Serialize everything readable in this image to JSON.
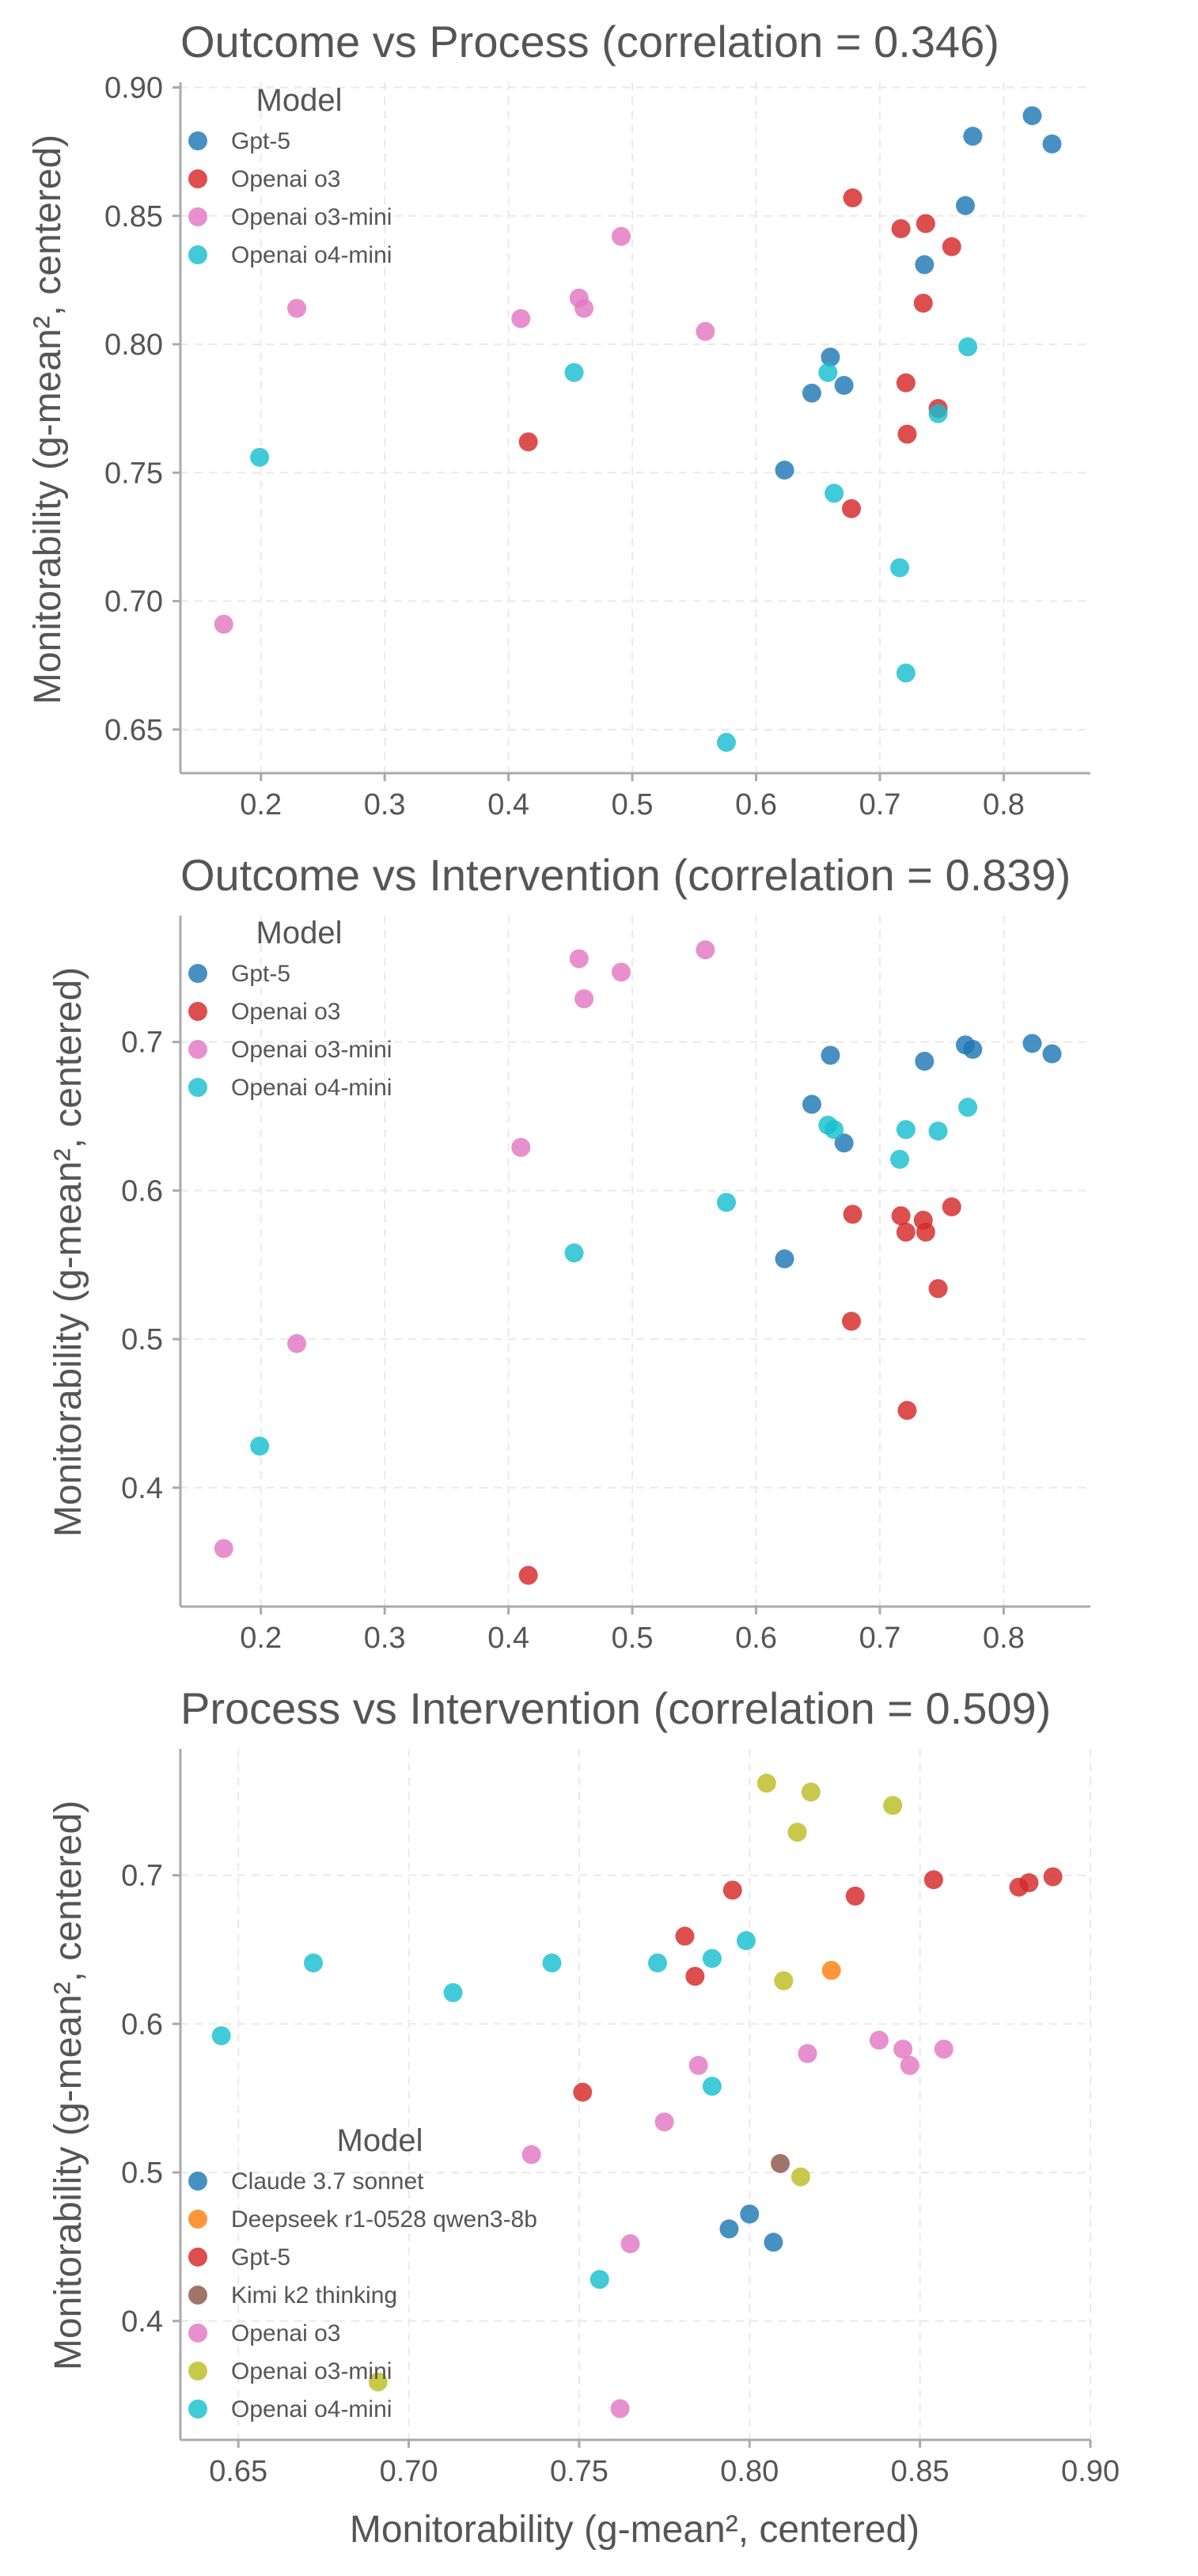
{
  "colors": {
    "claude": "#1f77b4",
    "deepseek": "#ff7f0e",
    "gpt5_panel3": "#d62728",
    "kimi": "#8c564b",
    "o3_panel3": "#e377c2",
    "o3mini_panel3": "#bcbd22",
    "o4mini": "#17becf",
    "gpt5": "#1f77b4",
    "o3": "#d62728",
    "o3mini": "#e377c2"
  },
  "chart_data": [
    {
      "type": "scatter",
      "title": "Outcome vs Process (correlation = 0.346)",
      "ylabel": "Monitorability (g-mean², centered)",
      "xlabel": "",
      "xlim": [
        0.135,
        0.87
      ],
      "ylim": [
        0.633,
        0.902
      ],
      "xticks": [
        0.2,
        0.3,
        0.4,
        0.5,
        0.6,
        0.7,
        0.8
      ],
      "xtick_labels": [
        "0.2",
        "0.3",
        "0.4",
        "0.5",
        "0.6",
        "0.7",
        "0.8"
      ],
      "yticks": [
        0.65,
        0.7,
        0.75,
        0.8,
        0.85,
        0.9
      ],
      "ytick_labels": [
        "0.65",
        "0.70",
        "0.75",
        "0.80",
        "0.85",
        "0.90"
      ],
      "grid": true,
      "legend": {
        "title": "Model",
        "position": "top-left"
      },
      "series": [
        {
          "name": "Gpt-5",
          "color": "#1f77b4",
          "points": [
            [
              0.623,
              0.751
            ],
            [
              0.645,
              0.781
            ],
            [
              0.66,
              0.795
            ],
            [
              0.671,
              0.784
            ],
            [
              0.736,
              0.831
            ],
            [
              0.769,
              0.854
            ],
            [
              0.775,
              0.881
            ],
            [
              0.823,
              0.889
            ],
            [
              0.839,
              0.878
            ]
          ]
        },
        {
          "name": "Openai o3",
          "color": "#d62728",
          "points": [
            [
              0.416,
              0.762
            ],
            [
              0.677,
              0.736
            ],
            [
              0.678,
              0.857
            ],
            [
              0.717,
              0.845
            ],
            [
              0.721,
              0.785
            ],
            [
              0.722,
              0.765
            ],
            [
              0.735,
              0.816
            ],
            [
              0.737,
              0.847
            ],
            [
              0.747,
              0.775
            ],
            [
              0.758,
              0.838
            ]
          ]
        },
        {
          "name": "Openai o3-mini",
          "color": "#e377c2",
          "points": [
            [
              0.17,
              0.691
            ],
            [
              0.229,
              0.814
            ],
            [
              0.41,
              0.81
            ],
            [
              0.457,
              0.818
            ],
            [
              0.461,
              0.814
            ],
            [
              0.491,
              0.842
            ],
            [
              0.559,
              0.805
            ]
          ]
        },
        {
          "name": "Openai o4-mini",
          "color": "#17becf",
          "points": [
            [
              0.199,
              0.756
            ],
            [
              0.453,
              0.789
            ],
            [
              0.576,
              0.645
            ],
            [
              0.658,
              0.789
            ],
            [
              0.663,
              0.742
            ],
            [
              0.716,
              0.713
            ],
            [
              0.721,
              0.672
            ],
            [
              0.747,
              0.773
            ],
            [
              0.771,
              0.799
            ]
          ]
        }
      ]
    },
    {
      "type": "scatter",
      "title": "Outcome vs Intervention (correlation = 0.839)",
      "ylabel": "Monitorability (g-mean², centered)",
      "xlabel": "",
      "xlim": [
        0.135,
        0.87
      ],
      "ylim": [
        0.32,
        0.785
      ],
      "xticks": [
        0.2,
        0.3,
        0.4,
        0.5,
        0.6,
        0.7,
        0.8
      ],
      "xtick_labels": [
        "0.2",
        "0.3",
        "0.4",
        "0.5",
        "0.6",
        "0.7",
        "0.8"
      ],
      "yticks": [
        0.4,
        0.5,
        0.6,
        0.7
      ],
      "ytick_labels": [
        "0.4",
        "0.5",
        "0.6",
        "0.7"
      ],
      "grid": true,
      "legend": {
        "title": "Model",
        "position": "top-left"
      },
      "series": [
        {
          "name": "Gpt-5",
          "color": "#1f77b4",
          "points": [
            [
              0.623,
              0.554
            ],
            [
              0.645,
              0.658
            ],
            [
              0.66,
              0.691
            ],
            [
              0.671,
              0.632
            ],
            [
              0.736,
              0.687
            ],
            [
              0.769,
              0.698
            ],
            [
              0.775,
              0.695
            ],
            [
              0.823,
              0.699
            ],
            [
              0.839,
              0.692
            ]
          ]
        },
        {
          "name": "Openai o3",
          "color": "#d62728",
          "points": [
            [
              0.416,
              0.341
            ],
            [
              0.677,
              0.512
            ],
            [
              0.678,
              0.584
            ],
            [
              0.717,
              0.583
            ],
            [
              0.721,
              0.572
            ],
            [
              0.722,
              0.452
            ],
            [
              0.735,
              0.58
            ],
            [
              0.737,
              0.572
            ],
            [
              0.747,
              0.534
            ],
            [
              0.758,
              0.589
            ]
          ]
        },
        {
          "name": "Openai o3-mini",
          "color": "#e377c2",
          "points": [
            [
              0.17,
              0.359
            ],
            [
              0.229,
              0.497
            ],
            [
              0.41,
              0.629
            ],
            [
              0.457,
              0.756
            ],
            [
              0.461,
              0.729
            ],
            [
              0.491,
              0.747
            ],
            [
              0.559,
              0.762
            ]
          ]
        },
        {
          "name": "Openai o4-mini",
          "color": "#17becf",
          "points": [
            [
              0.199,
              0.428
            ],
            [
              0.453,
              0.558
            ],
            [
              0.576,
              0.592
            ],
            [
              0.658,
              0.644
            ],
            [
              0.663,
              0.641
            ],
            [
              0.716,
              0.621
            ],
            [
              0.721,
              0.641
            ],
            [
              0.747,
              0.64
            ],
            [
              0.771,
              0.656
            ]
          ]
        }
      ]
    },
    {
      "type": "scatter",
      "title": "Process vs Intervention (correlation = 0.509)",
      "ylabel": "Monitorability (g-mean², centered)",
      "xlabel": "Monitorability (g-mean², centered)",
      "xlim": [
        0.633,
        0.9
      ],
      "ylim": [
        0.32,
        0.785
      ],
      "xticks": [
        0.65,
        0.7,
        0.75,
        0.8,
        0.85,
        0.9
      ],
      "xtick_labels": [
        "0.65",
        "0.70",
        "0.75",
        "0.80",
        "0.85",
        "0.90"
      ],
      "yticks": [
        0.4,
        0.5,
        0.6,
        0.7
      ],
      "ytick_labels": [
        "0.4",
        "0.5",
        "0.6",
        "0.7"
      ],
      "grid": true,
      "legend": {
        "title": "Model",
        "position": "bottom-left"
      },
      "series": [
        {
          "name": "Claude 3.7 sonnet",
          "color": "#1f77b4",
          "points": [
            [
              0.794,
              0.462
            ],
            [
              0.8,
              0.472
            ],
            [
              0.807,
              0.453
            ]
          ]
        },
        {
          "name": "Deepseek r1-0528 qwen3-8b",
          "color": "#ff7f0e",
          "points": [
            [
              0.824,
              0.636
            ]
          ]
        },
        {
          "name": "Gpt-5",
          "color": "#d62728",
          "points": [
            [
              0.751,
              0.554
            ],
            [
              0.781,
              0.659
            ],
            [
              0.784,
              0.632
            ],
            [
              0.795,
              0.69
            ],
            [
              0.831,
              0.686
            ],
            [
              0.854,
              0.697
            ],
            [
              0.879,
              0.692
            ],
            [
              0.882,
              0.695
            ],
            [
              0.889,
              0.699
            ]
          ]
        },
        {
          "name": "Kimi k2 thinking",
          "color": "#8c564b",
          "points": [
            [
              0.809,
              0.506
            ]
          ]
        },
        {
          "name": "Openai o3",
          "color": "#e377c2",
          "points": [
            [
              0.736,
              0.512
            ],
            [
              0.762,
              0.341
            ],
            [
              0.765,
              0.452
            ],
            [
              0.775,
              0.534
            ],
            [
              0.785,
              0.572
            ],
            [
              0.817,
              0.58
            ],
            [
              0.838,
              0.589
            ],
            [
              0.845,
              0.583
            ],
            [
              0.847,
              0.572
            ],
            [
              0.857,
              0.583
            ]
          ]
        },
        {
          "name": "Openai o3-mini",
          "color": "#bcbd22",
          "points": [
            [
              0.691,
              0.359
            ],
            [
              0.805,
              0.762
            ],
            [
              0.81,
              0.629
            ],
            [
              0.814,
              0.729
            ],
            [
              0.815,
              0.497
            ],
            [
              0.818,
              0.756
            ],
            [
              0.842,
              0.747
            ]
          ]
        },
        {
          "name": "Openai o4-mini",
          "color": "#17becf",
          "points": [
            [
              0.645,
              0.592
            ],
            [
              0.672,
              0.641
            ],
            [
              0.713,
              0.621
            ],
            [
              0.742,
              0.641
            ],
            [
              0.756,
              0.428
            ],
            [
              0.773,
              0.641
            ],
            [
              0.789,
              0.558
            ],
            [
              0.789,
              0.644
            ],
            [
              0.799,
              0.656
            ]
          ]
        }
      ]
    }
  ]
}
